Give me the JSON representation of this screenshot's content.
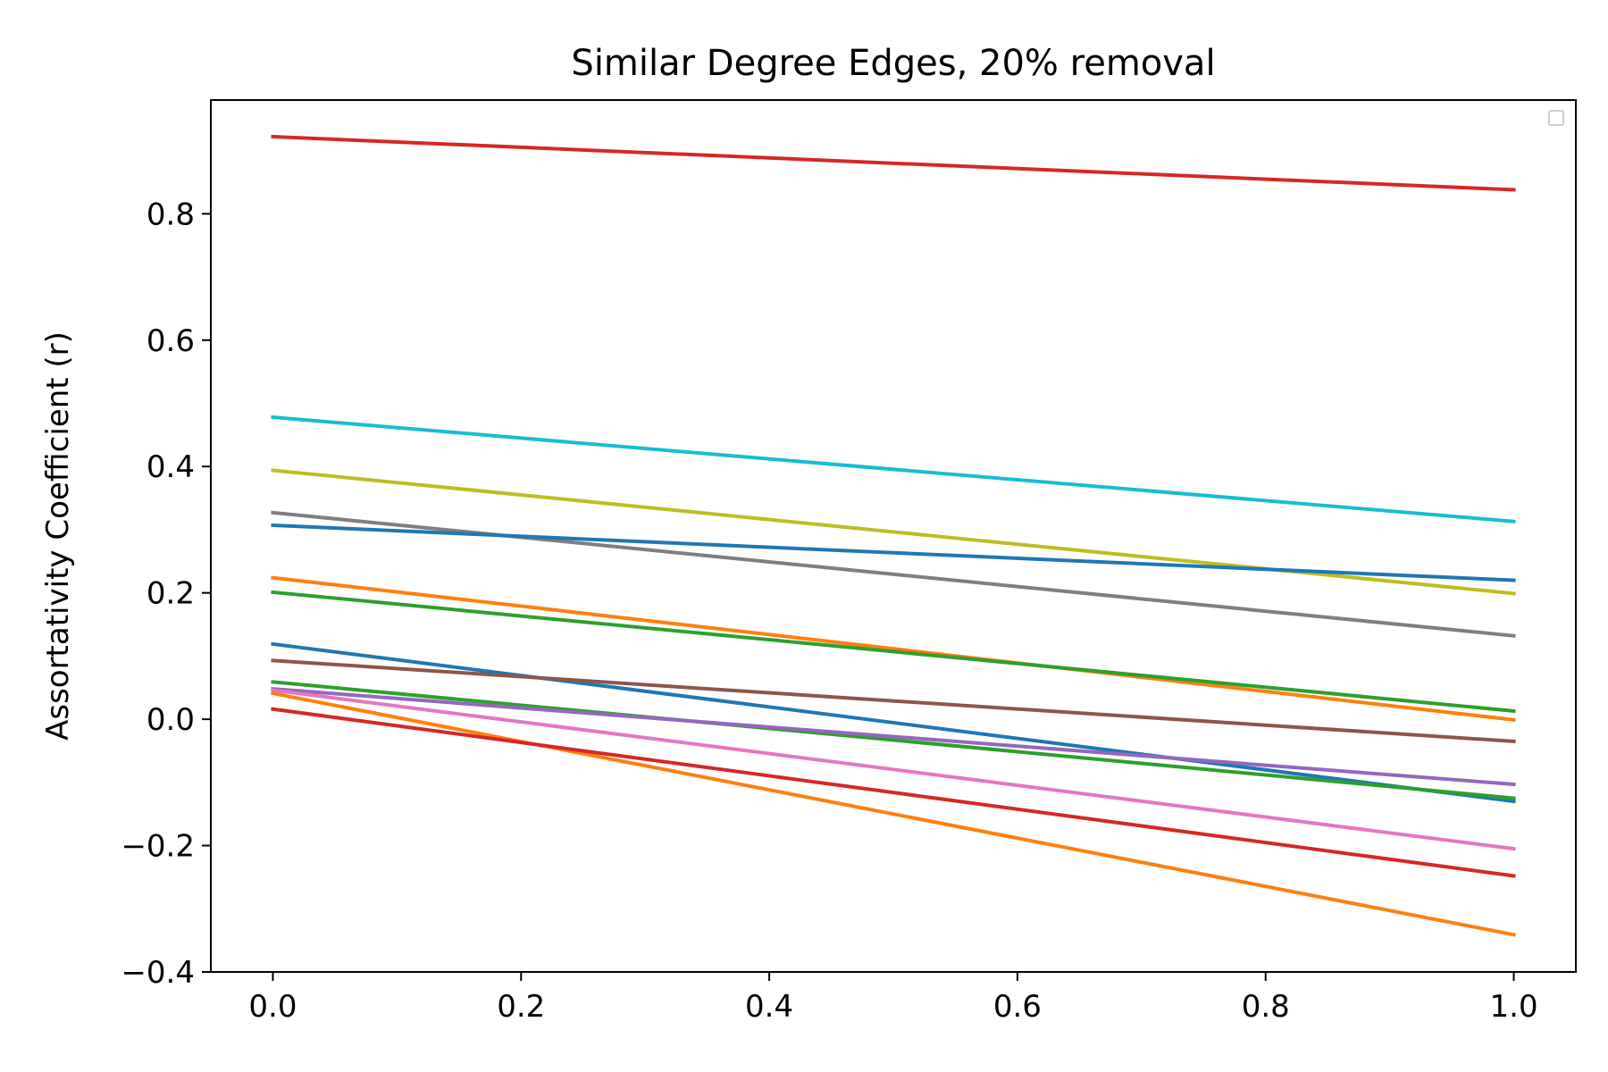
{
  "chart_data": {
    "type": "line",
    "title": "Similar Degree Edges, 20% removal",
    "xlabel": "",
    "ylabel": "Assortativity Coefficient (r)",
    "xlim": [
      -0.05,
      1.05
    ],
    "ylim": [
      -0.4,
      0.98
    ],
    "xticks": [
      0.0,
      0.2,
      0.4,
      0.6,
      0.8,
      1.0
    ],
    "xtick_labels": [
      "0.0",
      "0.2",
      "0.4",
      "0.6",
      "0.8",
      "1.0"
    ],
    "yticks": [
      -0.4,
      -0.2,
      0.0,
      0.2,
      0.4,
      0.6,
      0.8
    ],
    "ytick_labels": [
      "−0.4",
      "−0.2",
      "0.0",
      "0.2",
      "0.4",
      "0.6",
      "0.8"
    ],
    "grid": false,
    "legend": "top-right (empty)",
    "x": [
      0.0,
      1.0
    ],
    "series": [
      {
        "color": "#d62728",
        "values": [
          0.922,
          0.838
        ]
      },
      {
        "color": "#17becf",
        "values": [
          0.478,
          0.313
        ]
      },
      {
        "color": "#bcbd22",
        "values": [
          0.394,
          0.199
        ]
      },
      {
        "color": "#7f7f7f",
        "values": [
          0.327,
          0.132
        ]
      },
      {
        "color": "#1f77b4",
        "values": [
          0.307,
          0.22
        ]
      },
      {
        "color": "#ff7f0e",
        "values": [
          0.224,
          -0.001
        ]
      },
      {
        "color": "#2ca02c",
        "values": [
          0.201,
          0.013
        ]
      },
      {
        "color": "#1f77b4",
        "values": [
          0.119,
          -0.13
        ]
      },
      {
        "color": "#8c564b",
        "values": [
          0.093,
          -0.035
        ]
      },
      {
        "color": "#2ca02c",
        "values": [
          0.059,
          -0.125
        ]
      },
      {
        "color": "#9467bd",
        "values": [
          0.048,
          -0.103
        ]
      },
      {
        "color": "#e377c2",
        "values": [
          0.046,
          -0.205
        ]
      },
      {
        "color": "#ff7f0e",
        "values": [
          0.041,
          -0.341
        ]
      },
      {
        "color": "#d62728",
        "values": [
          0.016,
          -0.248
        ]
      }
    ]
  }
}
